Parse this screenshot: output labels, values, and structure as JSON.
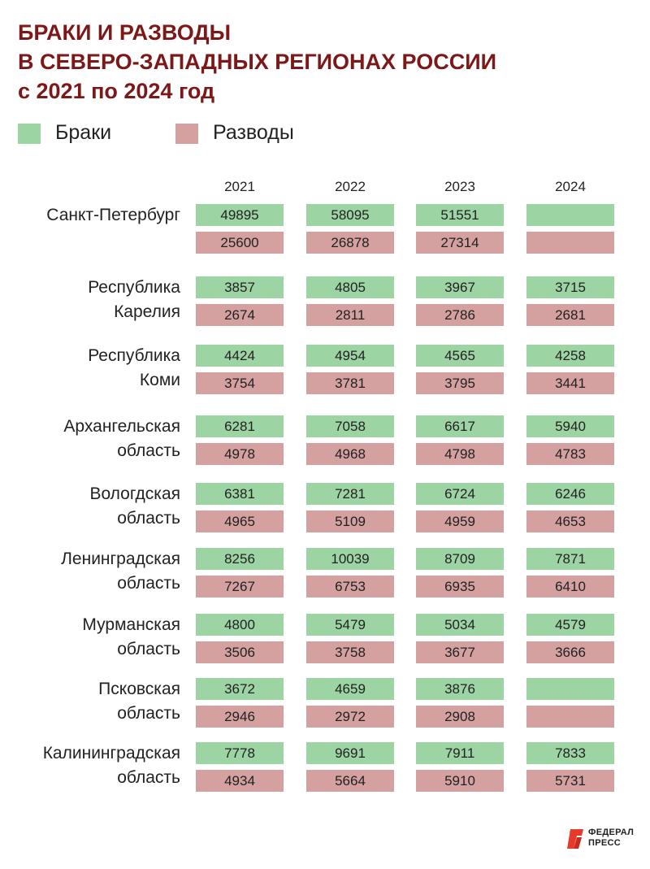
{
  "title": {
    "line1": "БРАКИ И РАЗВОДЫ",
    "line2": "В СЕВЕРО-ЗАПАДНЫХ РЕГИОНАХ РОССИИ",
    "line3": "с 2021 по 2024 год"
  },
  "colors": {
    "title": "#7d1818",
    "marriages": "#9dd4a3",
    "divorces": "#d4a0a0",
    "logo": "#e8392d"
  },
  "logo": {
    "line1": "ФЕДЕРАЛ",
    "line2": "ПРЕСС"
  },
  "chart_data": {
    "type": "table",
    "title": "БРАКИ И РАЗВОДЫ В СЕВЕРО-ЗАПАДНЫХ РЕГИОНАХ РОССИИ с 2021 по 2024 год",
    "legend": [
      "Браки",
      "Разводы"
    ],
    "years": [
      "2021",
      "2022",
      "2023",
      "2024"
    ],
    "regions": [
      {
        "name": [
          "Санкт-Петербург"
        ],
        "marriages": [
          "49895",
          "58095",
          "51551",
          ""
        ],
        "divorces": [
          "25600",
          "26878",
          "27314",
          ""
        ]
      },
      {
        "name": [
          "Республика",
          "Карелия"
        ],
        "marriages": [
          "3857",
          "4805",
          "3967",
          "3715"
        ],
        "divorces": [
          "2674",
          "2811",
          "2786",
          "2681"
        ]
      },
      {
        "name": [
          "Республика",
          "Коми"
        ],
        "marriages": [
          "4424",
          "4954",
          "4565",
          "4258"
        ],
        "divorces": [
          "3754",
          "3781",
          "3795",
          "3441"
        ]
      },
      {
        "name": [
          "Архангельская",
          "область"
        ],
        "marriages": [
          "6281",
          "7058",
          "6617",
          "5940"
        ],
        "divorces": [
          "4978",
          "4968",
          "4798",
          "4783"
        ]
      },
      {
        "name": [
          "Вологдская",
          "область"
        ],
        "marriages": [
          "6381",
          "7281",
          "6724",
          "6246"
        ],
        "divorces": [
          "4965",
          "5109",
          "4959",
          "4653"
        ]
      },
      {
        "name": [
          "Ленинградская",
          "область"
        ],
        "marriages": [
          "8256",
          "10039",
          "8709",
          "7871"
        ],
        "divorces": [
          "7267",
          "6753",
          "6935",
          "6410"
        ]
      },
      {
        "name": [
          "Мурманская",
          "область"
        ],
        "marriages": [
          "4800",
          "5479",
          "5034",
          "4579"
        ],
        "divorces": [
          "3506",
          "3758",
          "3677",
          "3666"
        ]
      },
      {
        "name": [
          "Псковская",
          "область"
        ],
        "marriages": [
          "3672",
          "4659",
          "3876",
          ""
        ],
        "divorces": [
          "2946",
          "2972",
          "2908",
          ""
        ]
      },
      {
        "name": [
          "Калининградская",
          "область"
        ],
        "marriages": [
          "7778",
          "9691",
          "7911",
          "7833"
        ],
        "divorces": [
          "4934",
          "5664",
          "5910",
          "5731"
        ]
      }
    ]
  }
}
